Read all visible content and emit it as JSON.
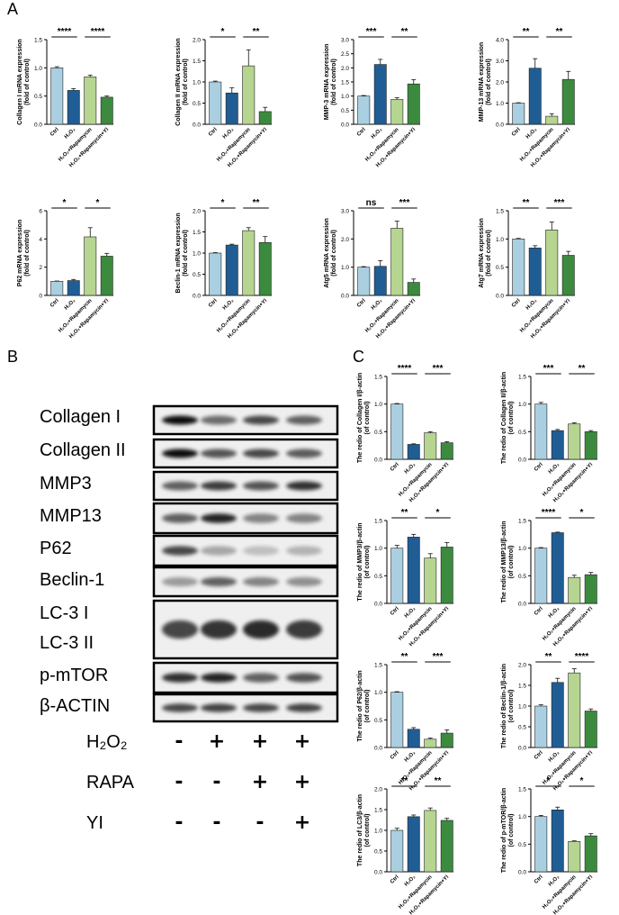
{
  "panel_letters": {
    "a": "A",
    "b": "B",
    "c": "C"
  },
  "colors": {
    "ctrl": "#a9cfe0",
    "h2o2": "#1f5d94",
    "rapa": "#b5d590",
    "yi": "#3c8a3e"
  },
  "western_blot": {
    "labels": [
      "Collagen I",
      "Collagen II",
      "MMP3",
      "MMP13",
      "P62",
      "Beclin-1",
      "LC-3 I",
      "LC-3 II",
      "p-mTOR",
      "β-ACTIN"
    ],
    "treatments": [
      {
        "label": "H₂O₂",
        "marks": [
          "-",
          "+",
          "+",
          "+"
        ]
      },
      {
        "label": "RAPA",
        "marks": [
          "-",
          "-",
          "+",
          "+"
        ]
      },
      {
        "label": "YI",
        "marks": [
          "-",
          "-",
          "-",
          "+"
        ]
      }
    ]
  },
  "chart_data": [
    {
      "type": "bar",
      "panel": "A",
      "ylabel": "Collagen I mRNA expression",
      "ylabel2": "(fold of control)",
      "categories": [
        "Ctrl",
        "H₂O₂",
        "H₂O₂+Rapamycin",
        "H₂O₂+Rapamycin+YI"
      ],
      "values": [
        1.0,
        0.6,
        0.84,
        0.48
      ],
      "errors": [
        0.02,
        0.03,
        0.03,
        0.02
      ],
      "ylim": [
        0,
        1.5
      ],
      "ticks": [
        "0.0",
        "0.5",
        "1.0",
        "1.5"
      ],
      "significance": [
        {
          "label": "****",
          "from": 0,
          "to": 1
        },
        {
          "label": "****",
          "from": 2,
          "to": 3
        }
      ]
    },
    {
      "type": "bar",
      "panel": "A",
      "ylabel": "Collagen II mRNA expression",
      "ylabel2": "(fold of control)",
      "categories": [
        "Ctrl",
        "H₂O₂",
        "H₂O₂+Rapamycin",
        "H₂O₂+Rapamycin+YI"
      ],
      "values": [
        1.0,
        0.74,
        1.38,
        0.3
      ],
      "errors": [
        0.02,
        0.12,
        0.38,
        0.1
      ],
      "ylim": [
        0,
        2.0
      ],
      "ticks": [
        "0.0",
        "0.5",
        "1.0",
        "1.5",
        "2.0"
      ],
      "significance": [
        {
          "label": "*",
          "from": 0,
          "to": 1
        },
        {
          "label": "**",
          "from": 2,
          "to": 3
        }
      ]
    },
    {
      "type": "bar",
      "panel": "A",
      "ylabel": "MMP-3 mRNA expression",
      "ylabel2": "(fold of control)",
      "categories": [
        "Ctrl",
        "H₂O₂",
        "H₂O₂+Rapamycin",
        "H₂O₂+Rapamycin+YI"
      ],
      "values": [
        1.0,
        2.12,
        0.88,
        1.43
      ],
      "errors": [
        0.02,
        0.18,
        0.06,
        0.15
      ],
      "ylim": [
        0,
        3.0
      ],
      "ticks": [
        "0.0",
        "0.5",
        "1.0",
        "1.5",
        "2.0",
        "2.5",
        "3.0"
      ],
      "significance": [
        {
          "label": "***",
          "from": 0,
          "to": 1
        },
        {
          "label": "**",
          "from": 2,
          "to": 3
        }
      ]
    },
    {
      "type": "bar",
      "panel": "A",
      "ylabel": "MMP-13 mRNA expression",
      "ylabel2": "(fold of control)",
      "categories": [
        "Ctrl",
        "H₂O₂",
        "H₂O₂+Rapamycin",
        "H₂O₂+Rapamycin+YI"
      ],
      "values": [
        1.0,
        2.65,
        0.38,
        2.12
      ],
      "errors": [
        0.02,
        0.45,
        0.12,
        0.38
      ],
      "ylim": [
        0,
        4.0
      ],
      "ticks": [
        "0.0",
        "1.0",
        "2.0",
        "3.0",
        "4.0"
      ],
      "significance": [
        {
          "label": "**",
          "from": 0,
          "to": 1
        },
        {
          "label": "**",
          "from": 2,
          "to": 3
        }
      ]
    },
    {
      "type": "bar",
      "panel": "A",
      "ylabel": "P62 mRNA expression",
      "ylabel2": "(fold of control)",
      "categories": [
        "Ctrl",
        "H₂O₂",
        "H₂O₂+Rapamycin",
        "H₂O₂+Rapamycin+YI"
      ],
      "values": [
        1.0,
        1.05,
        4.15,
        2.78
      ],
      "errors": [
        0.02,
        0.08,
        0.65,
        0.2
      ],
      "ylim": [
        0,
        6
      ],
      "ticks": [
        "0",
        "2",
        "4",
        "6"
      ],
      "significance": [
        {
          "label": "*",
          "from": 0,
          "to": 1
        },
        {
          "label": "*",
          "from": 2,
          "to": 3
        }
      ]
    },
    {
      "type": "bar",
      "panel": "A",
      "ylabel": "Beclin-1 mRNA expression",
      "ylabel2": "(fold of control)",
      "categories": [
        "Ctrl",
        "H₂O₂",
        "H₂O₂+Rapamycin",
        "H₂O₂+Rapamycin+YI"
      ],
      "values": [
        1.0,
        1.19,
        1.53,
        1.25
      ],
      "errors": [
        0.01,
        0.02,
        0.07,
        0.14
      ],
      "ylim": [
        0,
        2.0
      ],
      "ticks": [
        "0.0",
        "0.5",
        "1.0",
        "1.5",
        "2.0"
      ],
      "significance": [
        {
          "label": "*",
          "from": 0,
          "to": 1
        },
        {
          "label": "**",
          "from": 2,
          "to": 3
        }
      ]
    },
    {
      "type": "bar",
      "panel": "A",
      "ylabel": "Atg5 mRNA expression",
      "ylabel2": "(fold of control)",
      "categories": [
        "Ctrl",
        "H₂O₂",
        "H₂O₂+Rapamycin",
        "H₂O₂+Rapamycin+YI"
      ],
      "values": [
        1.0,
        1.03,
        2.38,
        0.46
      ],
      "errors": [
        0.02,
        0.2,
        0.25,
        0.12
      ],
      "ylim": [
        0,
        3.0
      ],
      "ticks": [
        "0.0",
        "1.0",
        "2.0",
        "3.0"
      ],
      "significance": [
        {
          "label": "ns",
          "from": 0,
          "to": 1
        },
        {
          "label": "***",
          "from": 2,
          "to": 3
        }
      ]
    },
    {
      "type": "bar",
      "panel": "A",
      "ylabel": "Atg7 mRNA expression",
      "ylabel2": "(fold of control)",
      "categories": [
        "Ctrl",
        "H₂O₂",
        "H₂O₂+Rapamycin",
        "H₂O₂+Rapamycin+YI"
      ],
      "values": [
        1.0,
        0.84,
        1.16,
        0.71
      ],
      "errors": [
        0.01,
        0.04,
        0.14,
        0.07
      ],
      "ylim": [
        0,
        1.5
      ],
      "ticks": [
        "0.0",
        "0.5",
        "1.0",
        "1.5"
      ],
      "significance": [
        {
          "label": "**",
          "from": 0,
          "to": 1
        },
        {
          "label": "***",
          "from": 2,
          "to": 3
        }
      ]
    },
    {
      "type": "bar",
      "panel": "C",
      "ylabel": "The redio of Collagen I/β-actin",
      "ylabel2": "(of control)",
      "categories": [
        "Ctrl",
        "H₂O₂",
        "H₂O₂+Rapamycin",
        "H₂O₂+Rapamycin+YI"
      ],
      "values": [
        1.0,
        0.27,
        0.48,
        0.3
      ],
      "errors": [
        0.01,
        0.01,
        0.02,
        0.02
      ],
      "ylim": [
        0,
        1.5
      ],
      "ticks": [
        "0.0",
        "0.5",
        "1.0",
        "1.5"
      ],
      "significance": [
        {
          "label": "****",
          "from": 0,
          "to": 1
        },
        {
          "label": "***",
          "from": 2,
          "to": 3
        }
      ]
    },
    {
      "type": "bar",
      "panel": "C",
      "ylabel": "The redio of Collagen II/β-actin",
      "ylabel2": "(of control)",
      "categories": [
        "Ctrl",
        "H₂O₂",
        "H₂O₂+Rapamycin",
        "H₂O₂+Rapamycin+YI"
      ],
      "values": [
        1.0,
        0.52,
        0.64,
        0.5
      ],
      "errors": [
        0.03,
        0.02,
        0.02,
        0.02
      ],
      "ylim": [
        0,
        1.5
      ],
      "ticks": [
        "0.0",
        "0.5",
        "1.0",
        "1.5"
      ],
      "significance": [
        {
          "label": "***",
          "from": 0,
          "to": 1
        },
        {
          "label": "**",
          "from": 2,
          "to": 3
        }
      ]
    },
    {
      "type": "bar",
      "panel": "C",
      "ylabel": "The redio of MMP3/β-actin",
      "ylabel2": "(of control)",
      "categories": [
        "Ctrl",
        "H₂O₂",
        "H₂O₂+Rapamycin",
        "H₂O₂+Rapamycin+YI"
      ],
      "values": [
        1.0,
        1.2,
        0.82,
        1.02
      ],
      "errors": [
        0.05,
        0.05,
        0.08,
        0.08
      ],
      "ylim": [
        0,
        1.5
      ],
      "ticks": [
        "0.0",
        "0.5",
        "1.0",
        "1.5"
      ],
      "significance": [
        {
          "label": "**",
          "from": 0,
          "to": 1
        },
        {
          "label": "*",
          "from": 2,
          "to": 3
        }
      ]
    },
    {
      "type": "bar",
      "panel": "C",
      "ylabel": "The redio of MMP13/β-actin",
      "ylabel2": "(of control)",
      "categories": [
        "Ctrl",
        "H₂O₂",
        "H₂O₂+Rapamycin",
        "H₂O₂+Rapamycin+YI"
      ],
      "values": [
        1.0,
        1.28,
        0.47,
        0.52
      ],
      "errors": [
        0.01,
        0.01,
        0.04,
        0.04
      ],
      "ylim": [
        0,
        1.5
      ],
      "ticks": [
        "0.0",
        "0.5",
        "1.0",
        "1.5"
      ],
      "significance": [
        {
          "label": "****",
          "from": 0,
          "to": 1
        },
        {
          "label": "*",
          "from": 2,
          "to": 3
        }
      ]
    },
    {
      "type": "bar",
      "panel": "C",
      "ylabel": "The redio of P62/β-actin",
      "ylabel2": "(of control)",
      "categories": [
        "Ctrl",
        "H₂O₂",
        "H₂O₂+Rapamycin",
        "H₂O₂+Rapamycin+YI"
      ],
      "values": [
        1.0,
        0.33,
        0.15,
        0.26
      ],
      "errors": [
        0.01,
        0.03,
        0.02,
        0.06
      ],
      "ylim": [
        0,
        1.5
      ],
      "ticks": [
        "0.0",
        "0.5",
        "1.0",
        "1.5"
      ],
      "significance": [
        {
          "label": "**",
          "from": 0,
          "to": 1
        },
        {
          "label": "***",
          "from": 2,
          "to": 3
        }
      ]
    },
    {
      "type": "bar",
      "panel": "C",
      "ylabel": "The redio of Beclin-1/β-actin",
      "ylabel2": "(of control)",
      "categories": [
        "Ctrl",
        "H₂O₂",
        "H₂O₂+Rapamycin",
        "H₂O₂+Rapamycin+YI"
      ],
      "values": [
        1.0,
        1.57,
        1.8,
        0.88
      ],
      "errors": [
        0.03,
        0.1,
        0.1,
        0.05
      ],
      "ylim": [
        0,
        2.0
      ],
      "ticks": [
        "0.0",
        "0.5",
        "1.0",
        "1.5",
        "2.0"
      ],
      "significance": [
        {
          "label": "**",
          "from": 0,
          "to": 1
        },
        {
          "label": "****",
          "from": 2,
          "to": 3
        }
      ]
    },
    {
      "type": "bar",
      "panel": "C",
      "ylabel": "The redio of LC3/β-actin",
      "ylabel2": "(of control)",
      "categories": [
        "Ctrl",
        "H₂O₂",
        "H₂O₂+Rapamycin",
        "H₂O₂+Rapamycin+YI"
      ],
      "values": [
        1.0,
        1.33,
        1.48,
        1.24
      ],
      "errors": [
        0.05,
        0.04,
        0.06,
        0.05
      ],
      "ylim": [
        0,
        2.0
      ],
      "ticks": [
        "0.0",
        "0.5",
        "1.0",
        "1.5",
        "2.0"
      ],
      "significance": [
        {
          "label": "**",
          "from": 0,
          "to": 1
        },
        {
          "label": "**",
          "from": 2,
          "to": 3
        }
      ]
    },
    {
      "type": "bar",
      "panel": "C",
      "ylabel": "The redio of p-mTOR/β-actin",
      "ylabel2": "(of control)",
      "categories": [
        "Ctrl",
        "H₂O₂",
        "H₂O₂+Rapamycin",
        "H₂O₂+Rapamycin+YI"
      ],
      "values": [
        1.0,
        1.12,
        0.55,
        0.65
      ],
      "errors": [
        0.02,
        0.05,
        0.01,
        0.04
      ],
      "ylim": [
        0,
        1.5
      ],
      "ticks": [
        "0.0",
        "0.5",
        "1.0",
        "1.5"
      ],
      "significance": [
        {
          "label": "*",
          "from": 0,
          "to": 1
        },
        {
          "label": "*",
          "from": 2,
          "to": 3
        }
      ]
    }
  ]
}
